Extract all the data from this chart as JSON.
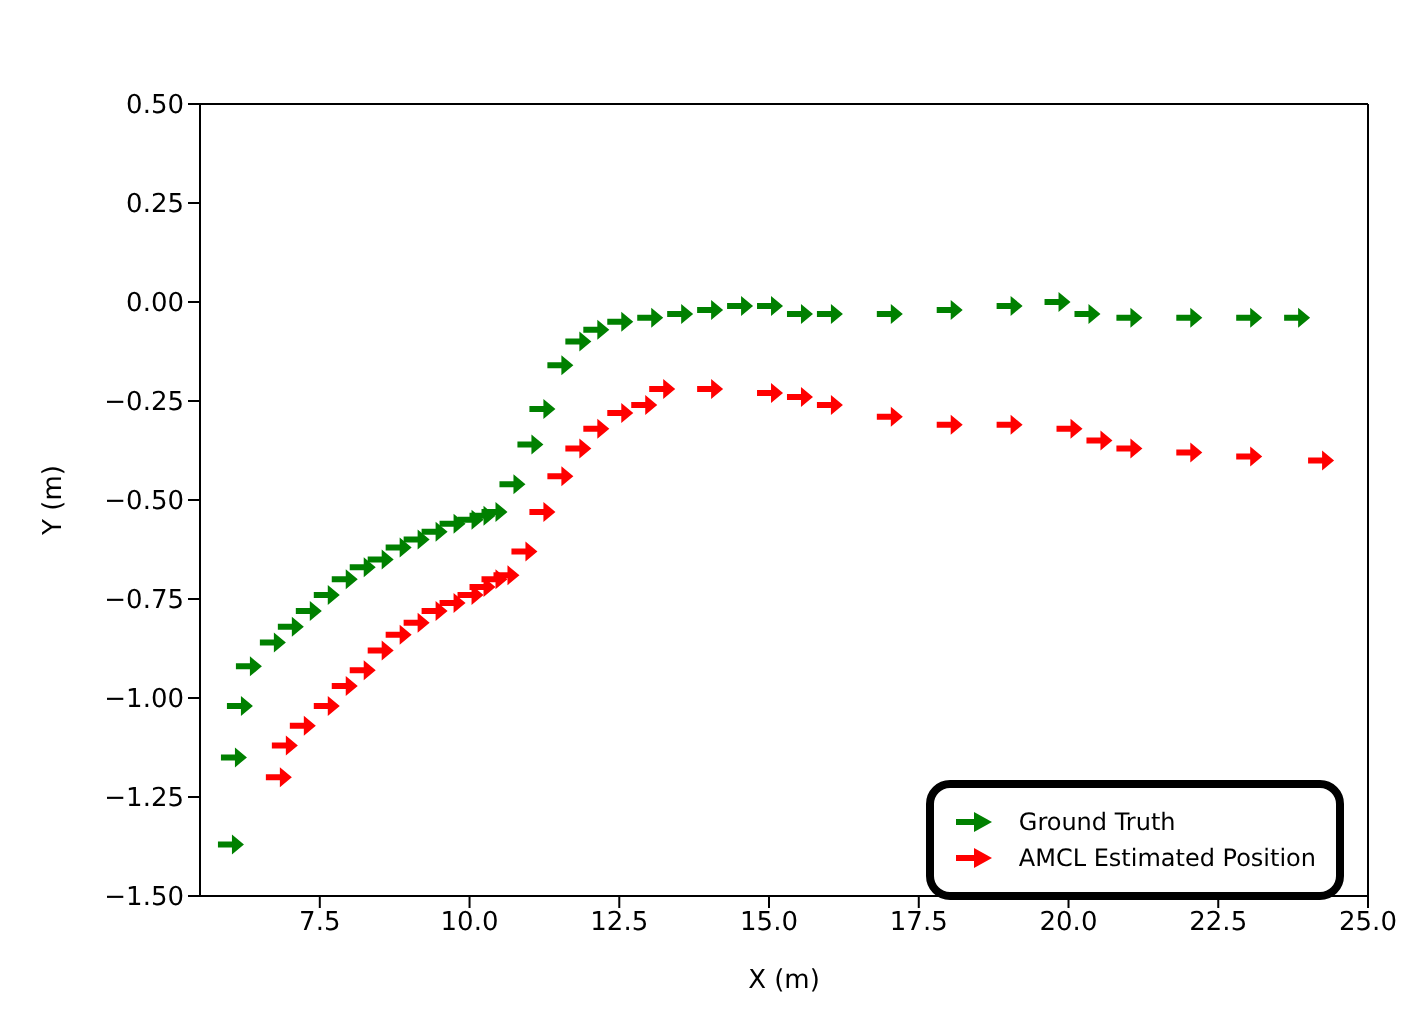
{
  "chart_data": {
    "type": "scatter",
    "xlabel": "X (m)",
    "ylabel": "Y (m)",
    "xlim": [
      5.5,
      25
    ],
    "xticks": [
      {
        "value": 7.5,
        "label": "7.5"
      },
      {
        "value": 10,
        "label": "10.0"
      },
      {
        "value": 12.5,
        "label": "12.5"
      },
      {
        "value": 15,
        "label": "15.0"
      },
      {
        "value": 17.5,
        "label": "17.5"
      },
      {
        "value": 20,
        "label": "20.0"
      },
      {
        "value": 22.5,
        "label": "22.5"
      },
      {
        "value": 25,
        "label": "25.0"
      }
    ],
    "ylim": [
      -1.5,
      0.5
    ],
    "yticks": [
      {
        "value": -1.5,
        "label": "−1.50"
      },
      {
        "value": -1.25,
        "label": "−1.25"
      },
      {
        "value": -1,
        "label": "−1.00"
      },
      {
        "value": -0.75,
        "label": "−0.75"
      },
      {
        "value": -0.5,
        "label": "−0.50"
      },
      {
        "value": -0.25,
        "label": "−0.25"
      },
      {
        "value": 0,
        "label": "0.00"
      },
      {
        "value": 0.25,
        "label": "0.25"
      },
      {
        "value": 0.5,
        "label": "0.50"
      }
    ],
    "grid": false,
    "legend": "bottom right",
    "marker": "triangle",
    "series": [
      {
        "name": "Ground Truth",
        "color": "#008000",
        "x": [
          6.0,
          6.05,
          6.15,
          6.3,
          6.7,
          7.0,
          7.3,
          7.6,
          7.9,
          8.2,
          8.5,
          8.8,
          9.1,
          9.4,
          9.7,
          10.0,
          10.2,
          10.4,
          10.7,
          11.0,
          11.2,
          11.5,
          11.8,
          12.1,
          12.5,
          13.0,
          13.5,
          14.0,
          14.5,
          15.0,
          15.5,
          16.0,
          17.0,
          18.0,
          19.0,
          19.8,
          20.3,
          21.0,
          22.0,
          23.0,
          23.8
        ],
        "values": [
          -1.37,
          -1.15,
          -1.02,
          -0.92,
          -0.86,
          -0.82,
          -0.78,
          -0.74,
          -0.7,
          -0.67,
          -0.65,
          -0.62,
          -0.6,
          -0.58,
          -0.56,
          -0.55,
          -0.54,
          -0.53,
          -0.46,
          -0.36,
          -0.27,
          -0.16,
          -0.1,
          -0.07,
          -0.05,
          -0.04,
          -0.03,
          -0.02,
          -0.01,
          -0.01,
          -0.03,
          -0.03,
          -0.03,
          -0.02,
          -0.01,
          0.0,
          -0.03,
          -0.04,
          -0.04,
          -0.04,
          -0.04
        ]
      },
      {
        "name": "AMCL Estimated Position",
        "color": "#ff0000",
        "x": [
          6.8,
          6.9,
          7.2,
          7.6,
          7.9,
          8.2,
          8.5,
          8.8,
          9.1,
          9.4,
          9.7,
          10.0,
          10.2,
          10.4,
          10.6,
          10.9,
          11.2,
          11.5,
          11.8,
          12.1,
          12.5,
          12.9,
          13.2,
          14.0,
          15.0,
          15.5,
          16.0,
          17.0,
          18.0,
          19.0,
          20.0,
          20.5,
          21.0,
          22.0,
          23.0,
          24.2
        ],
        "values": [
          -1.2,
          -1.12,
          -1.07,
          -1.02,
          -0.97,
          -0.93,
          -0.88,
          -0.84,
          -0.81,
          -0.78,
          -0.76,
          -0.74,
          -0.72,
          -0.7,
          -0.69,
          -0.63,
          -0.53,
          -0.44,
          -0.37,
          -0.32,
          -0.28,
          -0.26,
          -0.22,
          -0.22,
          -0.23,
          -0.24,
          -0.26,
          -0.29,
          -0.31,
          -0.31,
          -0.32,
          -0.35,
          -0.37,
          -0.38,
          -0.39,
          -0.4
        ]
      }
    ]
  }
}
